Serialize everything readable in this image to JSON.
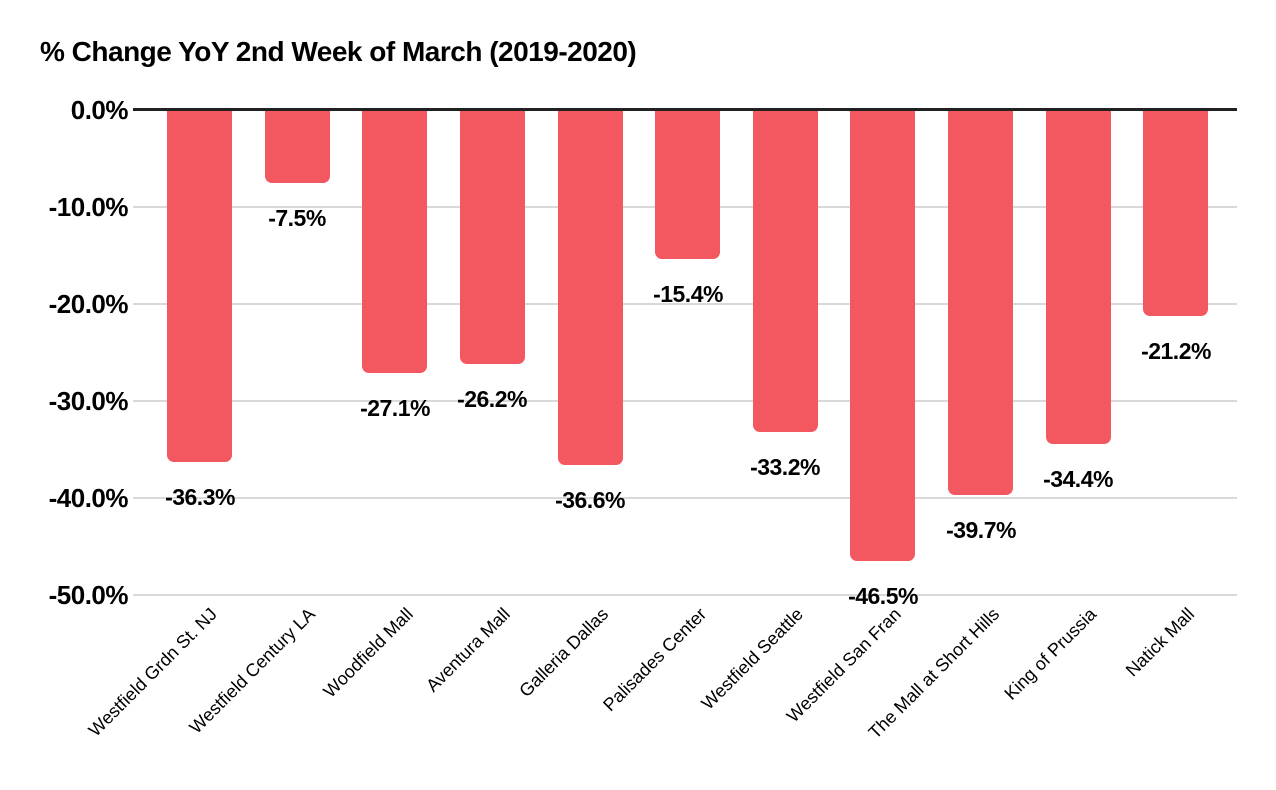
{
  "chart_data": {
    "type": "bar",
    "title": "% Change YoY 2nd Week of March (2019-2020)",
    "categories": [
      "Westfield Grdn St. NJ",
      "Westfield Century LA",
      "Woodfield Mall",
      "Aventura Mall",
      "Galleria Dallas",
      "Palisades Center",
      "Westfield Seattle",
      "Westfield San Fran",
      "The Mall at Short Hills",
      "King of Prussia",
      "Natick Mall"
    ],
    "values": [
      -36.3,
      -7.5,
      -27.1,
      -26.2,
      -36.6,
      -15.4,
      -33.2,
      -46.5,
      -39.7,
      -34.4,
      -21.2
    ],
    "data_labels": [
      "-36.3%",
      "-7.5%",
      "-27.1%",
      "-26.2%",
      "-36.6%",
      "-15.4%",
      "-33.2%",
      "-46.5%",
      "-39.7%",
      "-34.4%",
      "-21.2%"
    ],
    "xlabel": "",
    "ylabel": "",
    "y_ticks": [
      "0.0%",
      "-10.0%",
      "-20.0%",
      "-30.0%",
      "-40.0%",
      "-50.0%"
    ],
    "y_tick_values": [
      0,
      -10,
      -20,
      -30,
      -40,
      -50
    ],
    "ylim": [
      -50,
      0
    ],
    "grid": true,
    "legend_position": "none",
    "bar_color": "#F3575F",
    "axis_color": "#212121",
    "gridline_color": "#D9D9D9",
    "text_color": "#000000"
  }
}
